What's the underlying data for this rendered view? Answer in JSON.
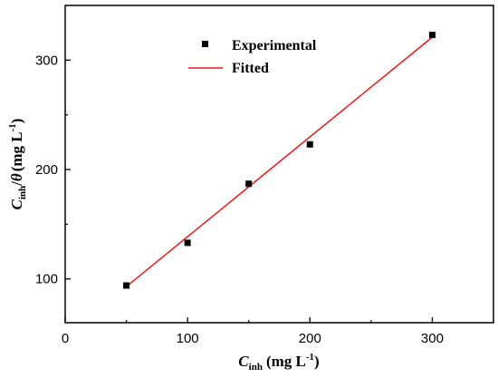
{
  "chart_data": {
    "type": "scatter",
    "xlim": [
      0,
      350
    ],
    "ylim": [
      60,
      350
    ],
    "x_ticks": [
      0,
      100,
      200,
      300
    ],
    "y_ticks": [
      100,
      200,
      300
    ],
    "x_tick_labels": [
      "0",
      "100",
      "200",
      "300"
    ],
    "y_tick_labels": [
      "100",
      "200",
      "300"
    ],
    "xlabel": {
      "symbol": "C",
      "subscript": "inh",
      "unit_text": "(mg L",
      "superscript": "-1",
      "close": ")"
    },
    "ylabel": {
      "symbol": "C",
      "subscript": "inh",
      "slash": "/",
      "theta": "θ",
      "unit_text": "(mg L",
      "superscript": "-1",
      "close": ")"
    },
    "series": [
      {
        "name": "Experimental",
        "kind": "markers",
        "marker": "square",
        "color": "#000000",
        "x": [
          50,
          100,
          150,
          200,
          300
        ],
        "y": [
          94,
          133,
          187,
          223,
          323
        ]
      },
      {
        "name": "Fitted",
        "kind": "line",
        "color": "#e41a1c",
        "x": [
          50,
          300
        ],
        "y": [
          93,
          321
        ]
      }
    ],
    "legend": {
      "placement": "top-center"
    },
    "grid": false
  }
}
